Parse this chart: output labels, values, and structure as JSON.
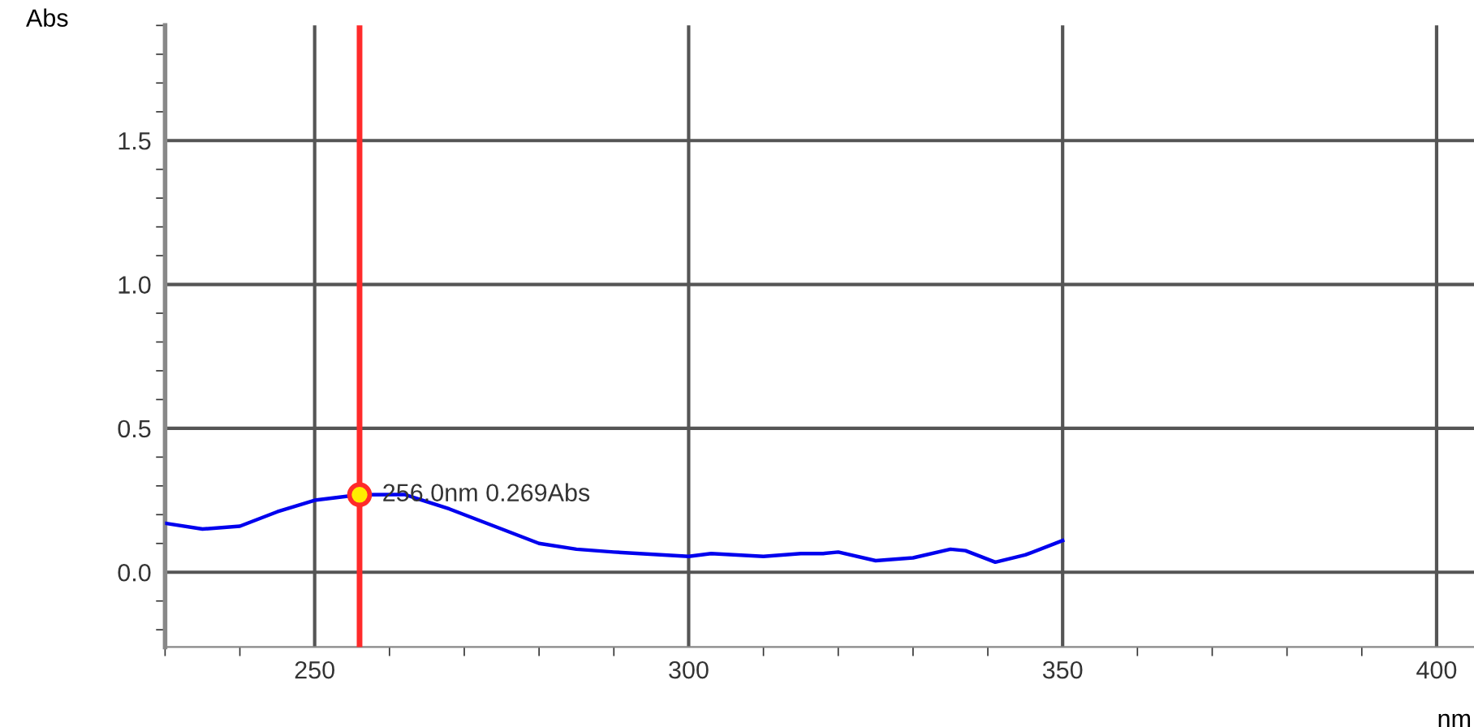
{
  "chart_data": {
    "type": "line",
    "xlabel": "nm",
    "ylabel": "Abs",
    "x": [
      230,
      235,
      240,
      245,
      250,
      256,
      262,
      268,
      275,
      280,
      285,
      290,
      300,
      303,
      310,
      315,
      318,
      320,
      325,
      330,
      335,
      337,
      341,
      345,
      350
    ],
    "series": [
      {
        "color": "#0000ee",
        "values": [
          0.17,
          0.15,
          0.16,
          0.21,
          0.25,
          0.269,
          0.27,
          0.22,
          0.15,
          0.1,
          0.08,
          0.07,
          0.055,
          0.065,
          0.055,
          0.065,
          0.065,
          0.07,
          0.04,
          0.05,
          0.08,
          0.075,
          0.035,
          0.06,
          0.11
        ]
      }
    ],
    "annotations": [
      {
        "text": "256.0nm 0.269Abs",
        "x": 256,
        "y": 0.269
      }
    ],
    "ref_lines": [
      {
        "axis": "x",
        "value": 256,
        "color": "#ff2a2a"
      }
    ],
    "xlim": [
      230,
      405
    ],
    "ylim": [
      -0.26,
      1.9
    ],
    "xticks": [
      250,
      300,
      350,
      400
    ],
    "yticks": [
      {
        "value": 0,
        "label": "0.0"
      },
      0.5,
      {
        "value": 1,
        "label": "1.0"
      },
      1.5
    ],
    "grid": true,
    "marker": "none",
    "line_style": "solid"
  }
}
